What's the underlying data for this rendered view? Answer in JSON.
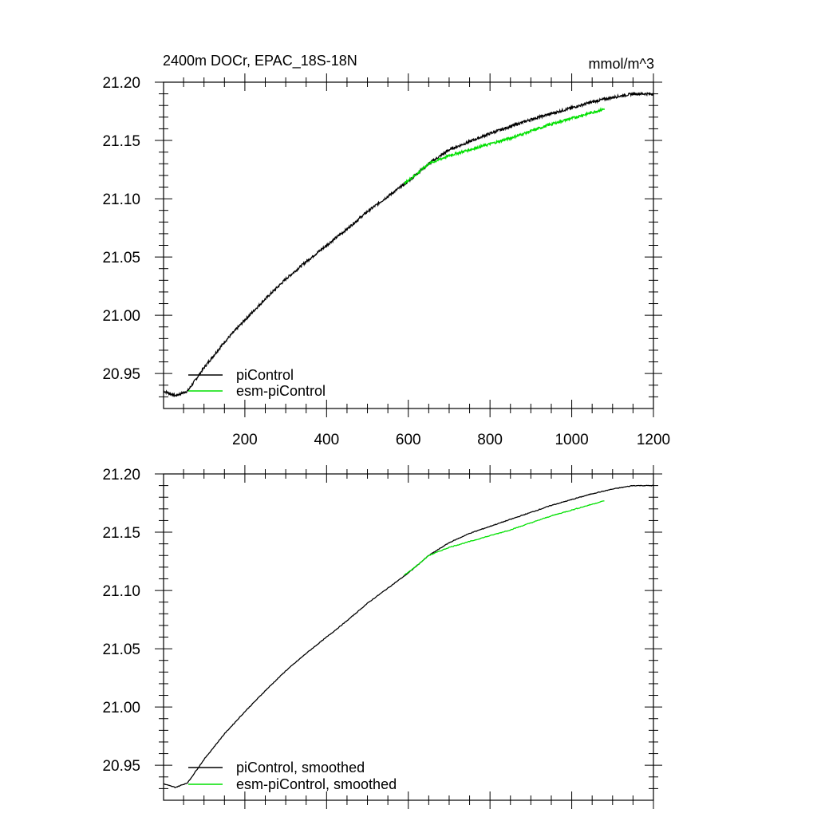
{
  "colors": {
    "piControl": "#000000",
    "esm_piControl": "#00e000"
  },
  "chart_data": [
    {
      "type": "line",
      "title": "2400m DOCr, EPAC_18S-18N",
      "units": "mmol/m^3",
      "xlim": [
        1,
        1200
      ],
      "ylim": [
        20.92,
        21.2
      ],
      "x_ticks": [
        200,
        400,
        600,
        800,
        1000,
        1200
      ],
      "x_tick_labels": [
        "200",
        "400",
        "600",
        "800",
        "1000",
        "1200"
      ],
      "y_ticks": [
        20.95,
        21.0,
        21.05,
        21.1,
        21.15,
        21.2
      ],
      "y_tick_labels": [
        "20.95",
        "21.00",
        "21.05",
        "21.10",
        "21.15",
        "21.20"
      ],
      "legend": {
        "placement": "bottom-left",
        "entries": [
          "piControl",
          "esm-piControl"
        ]
      },
      "noisy": true,
      "series": [
        {
          "name": "piControl",
          "color_key": "piControl",
          "x": [
            1,
            30,
            60,
            100,
            150,
            200,
            250,
            300,
            350,
            400,
            450,
            500,
            550,
            600,
            650,
            700,
            750,
            800,
            850,
            900,
            950,
            1000,
            1050,
            1100,
            1150,
            1200
          ],
          "y": [
            20.935,
            20.931,
            20.935,
            20.955,
            20.977,
            20.996,
            21.014,
            21.031,
            21.046,
            21.06,
            21.074,
            21.089,
            21.102,
            21.115,
            21.13,
            21.142,
            21.149,
            21.156,
            21.162,
            21.168,
            21.173,
            21.178,
            21.183,
            21.187,
            21.19,
            21.19
          ]
        },
        {
          "name": "esm-piControl",
          "color_key": "esm_piControl",
          "x": [
            590,
            620,
            650,
            700,
            750,
            800,
            850,
            900,
            950,
            1000,
            1050,
            1080
          ],
          "y": [
            21.113,
            21.121,
            21.13,
            21.137,
            21.142,
            21.147,
            21.152,
            21.158,
            21.164,
            21.169,
            21.174,
            21.177
          ]
        }
      ]
    },
    {
      "type": "line",
      "title": "",
      "xlim": [
        1,
        1200
      ],
      "ylim": [
        20.92,
        21.2
      ],
      "x_ticks": [
        200,
        400,
        600,
        800,
        1000,
        1200
      ],
      "y_ticks": [
        20.95,
        21.0,
        21.05,
        21.1,
        21.15,
        21.2
      ],
      "y_tick_labels": [
        "20.95",
        "21.00",
        "21.05",
        "21.10",
        "21.15",
        "21.20"
      ],
      "legend": {
        "placement": "bottom-left",
        "entries": [
          "piControl, smoothed",
          "esm-piControl, smoothed"
        ]
      },
      "noisy": false,
      "series": [
        {
          "name": "piControl, smoothed",
          "color_key": "piControl",
          "x": [
            1,
            30,
            60,
            100,
            150,
            200,
            250,
            300,
            350,
            400,
            450,
            500,
            550,
            600,
            650,
            700,
            750,
            800,
            850,
            900,
            950,
            1000,
            1050,
            1100,
            1150,
            1200
          ],
          "y": [
            20.934,
            20.931,
            20.935,
            20.955,
            20.977,
            20.996,
            21.014,
            21.031,
            21.046,
            21.06,
            21.074,
            21.089,
            21.102,
            21.115,
            21.13,
            21.141,
            21.149,
            21.155,
            21.161,
            21.167,
            21.173,
            21.178,
            21.183,
            21.187,
            21.19,
            21.19
          ]
        },
        {
          "name": "esm-piControl, smoothed",
          "color_key": "esm_piControl",
          "x": [
            590,
            620,
            650,
            700,
            750,
            800,
            850,
            900,
            950,
            1000,
            1050,
            1080
          ],
          "y": [
            21.113,
            21.121,
            21.13,
            21.137,
            21.142,
            21.147,
            21.152,
            21.158,
            21.164,
            21.169,
            21.174,
            21.177
          ]
        }
      ]
    }
  ]
}
